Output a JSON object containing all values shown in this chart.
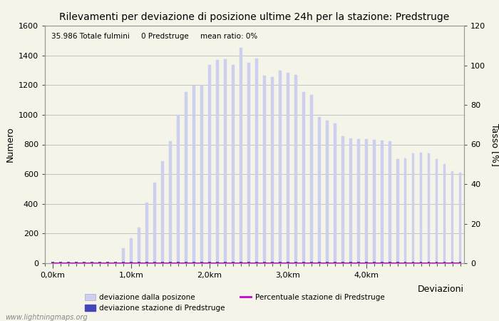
{
  "title": "Rilevamenti per deviazione di posizione ultime 24h per la stazione: Predstruge",
  "subtitle": "35.986 Totale fulmini     0 Predstruge     mean ratio: 0%",
  "xlabel": "Deviazioni",
  "ylabel_left": "Numero",
  "ylabel_right": "Tasso [%]",
  "bar_color": "#ccd0ee",
  "bar_color_station": "#4444bb",
  "line_color": "#cc00cc",
  "background_color": "#f4f4e8",
  "grid_color": "#bbbbbb",
  "ylim_left": [
    0,
    1600
  ],
  "ylim_right": [
    0,
    120
  ],
  "bar_values": [
    5,
    3,
    2,
    2,
    2,
    2,
    2,
    2,
    2,
    100,
    170,
    240,
    410,
    545,
    685,
    820,
    1000,
    1155,
    1195,
    1200,
    1335,
    1370,
    1375,
    1335,
    1450,
    1350,
    1380,
    1265,
    1255,
    1295,
    1285,
    1270,
    1155,
    1135,
    985,
    960,
    940,
    855,
    840,
    835,
    835,
    830,
    825,
    820,
    700,
    705,
    740,
    745,
    740,
    700,
    670,
    620,
    610
  ],
  "station_bar_values": [
    0,
    0,
    0,
    0,
    0,
    0,
    0,
    0,
    0,
    0,
    0,
    0,
    0,
    0,
    0,
    0,
    0,
    0,
    0,
    0,
    0,
    0,
    0,
    0,
    0,
    0,
    0,
    0,
    0,
    0,
    0,
    0,
    0,
    0,
    0,
    0,
    0,
    0,
    0,
    0,
    0,
    0,
    0,
    0,
    0,
    0,
    0,
    0,
    0,
    0,
    0,
    0,
    0
  ],
  "km_positions": [
    0,
    10,
    20,
    30,
    40
  ],
  "km_labels": [
    "0,0km",
    "1,0km",
    "2,0km",
    "3,0km",
    "4,0km"
  ],
  "yticks_left": [
    0,
    200,
    400,
    600,
    800,
    1000,
    1200,
    1400,
    1600
  ],
  "yticks_right": [
    0,
    20,
    40,
    60,
    80,
    100,
    120
  ],
  "watermark": "www.lightningmaps.org",
  "legend": {
    "label1": "deviazione dalla posizone",
    "label2": "deviazione stazione di Predstruge",
    "label3": "Percentuale stazione di Predstruge"
  }
}
